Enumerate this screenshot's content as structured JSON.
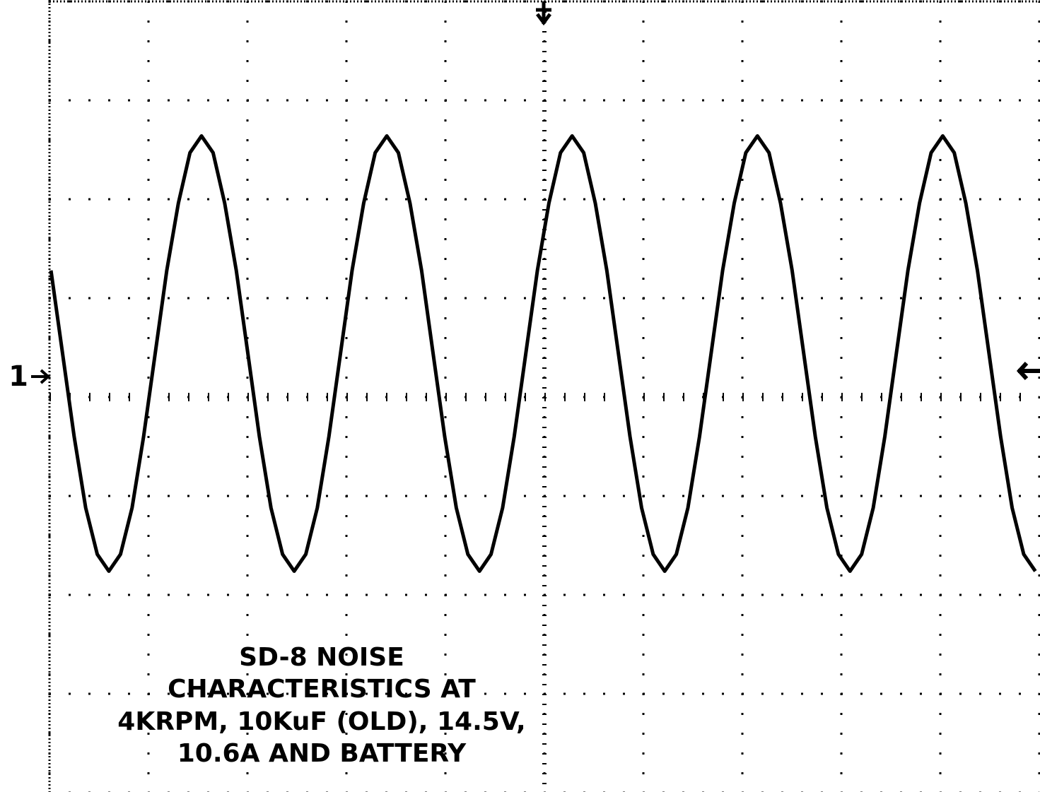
{
  "chart_data": {
    "type": "line",
    "annotation": [
      "SD-8 NOISE",
      "CHARACTERISTICS AT",
      "4KRPM, 10KuF (OLD), 14.5V,",
      "10.6A AND BATTERY"
    ],
    "channel_label": "1",
    "xlim": [
      0,
      10
    ],
    "ylim": [
      -4,
      4
    ],
    "grid": true,
    "x": [
      0.015,
      0.132,
      0.249,
      0.366,
      0.483,
      0.6,
      0.717,
      0.834,
      0.951,
      1.068,
      1.185,
      1.302,
      1.419,
      1.536,
      1.653,
      1.77,
      1.887,
      2.004,
      2.121,
      2.238,
      2.355,
      2.472,
      2.589,
      2.706,
      2.823,
      2.94,
      3.057,
      3.174,
      3.291,
      3.408,
      3.525,
      3.642,
      3.759,
      3.876,
      3.993,
      4.11,
      4.227,
      4.344,
      4.461,
      4.578,
      4.695,
      4.812,
      4.929,
      5.046,
      5.163,
      5.28,
      5.397,
      5.514,
      5.631,
      5.748,
      5.865,
      5.982,
      6.099,
      6.216,
      6.333,
      6.45,
      6.567,
      6.684,
      6.801,
      6.918,
      7.035,
      7.152,
      7.269,
      7.386,
      7.503,
      7.62,
      7.737,
      7.854,
      7.971,
      8.088,
      8.205,
      8.322,
      8.439,
      8.556,
      8.673,
      8.79,
      8.907,
      9.024,
      9.141,
      9.258,
      9.375,
      9.492,
      9.609,
      9.726,
      9.843,
      9.96
    ],
    "series": [
      {
        "color": "#000000",
        "values": [
          1.28,
          0.44,
          -0.4,
          -1.12,
          -1.59,
          -1.76,
          -1.59,
          -1.12,
          -0.4,
          0.44,
          1.28,
          1.96,
          2.47,
          2.64,
          2.47,
          1.96,
          1.28,
          0.44,
          -0.4,
          -1.12,
          -1.59,
          -1.76,
          -1.59,
          -1.12,
          -0.4,
          0.44,
          1.28,
          1.96,
          2.47,
          2.64,
          2.47,
          1.96,
          1.28,
          0.44,
          -0.4,
          -1.12,
          -1.59,
          -1.76,
          -1.59,
          -1.12,
          -0.4,
          0.44,
          1.28,
          1.96,
          2.47,
          2.64,
          2.47,
          1.96,
          1.28,
          0.44,
          -0.4,
          -1.12,
          -1.59,
          -1.76,
          -1.59,
          -1.12,
          -0.4,
          0.44,
          1.28,
          1.96,
          2.47,
          2.64,
          2.47,
          1.96,
          1.28,
          0.44,
          -0.4,
          -1.12,
          -1.59,
          -1.76,
          -1.59,
          -1.12,
          -0.4,
          0.44,
          1.28,
          1.96,
          2.47,
          2.64,
          2.47,
          1.96,
          1.28,
          0.44,
          -0.4,
          -1.12,
          -1.59,
          -1.76
        ]
      }
    ]
  }
}
